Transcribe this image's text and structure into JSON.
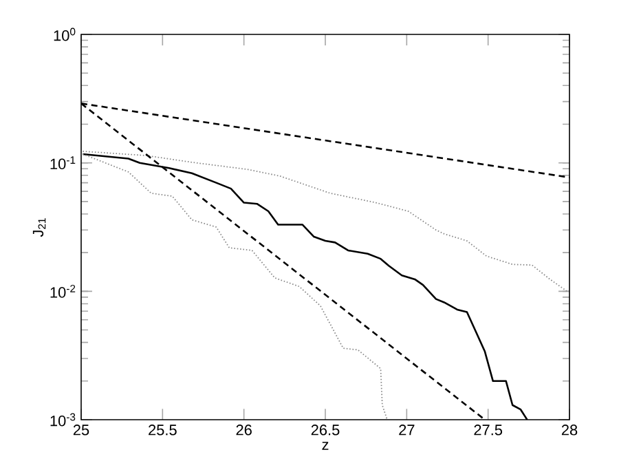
{
  "chart_data": {
    "type": "line",
    "xlabel": "z",
    "ylabel": "J$_{21}$",
    "log": "y",
    "xlim": [
      25,
      28
    ],
    "ylim": [
      0.001,
      1
    ],
    "xticks": [
      25,
      25.5,
      26,
      26.5,
      27,
      27.5,
      28
    ],
    "yticks": [
      {
        "value": 0.001,
        "label": "10$^{-3}$"
      },
      {
        "value": 0.01,
        "label": "10$^{-2}$"
      },
      {
        "value": 0.1,
        "label": "10$^{-1}$"
      },
      {
        "value": 1,
        "label": "10$^{0}$"
      }
    ],
    "marker": "none",
    "series": [
      {
        "color": "#000000",
        "line_style": "solid",
        "x": [
          25.01,
          25.29,
          25.36,
          25.54,
          25.68,
          25.83,
          25.92,
          26.0,
          26.08,
          26.15,
          26.21,
          26.36,
          26.43,
          26.5,
          26.56,
          26.64,
          26.76,
          26.84,
          26.89,
          26.97,
          27.05,
          27.1,
          27.18,
          27.23,
          27.31,
          27.37,
          27.42,
          27.48,
          27.53,
          27.61,
          27.65,
          27.7,
          27.74
        ],
        "values": [
          0.117,
          0.108,
          0.1,
          0.091,
          0.083,
          0.07,
          0.063,
          0.049,
          0.048,
          0.042,
          0.033,
          0.033,
          0.0266,
          0.0247,
          0.024,
          0.0208,
          0.0196,
          0.0179,
          0.0158,
          0.0133,
          0.0124,
          0.0112,
          0.0087,
          0.0082,
          0.0072,
          0.0069,
          0.005,
          0.0034,
          0.002,
          0.002,
          0.0013,
          0.0012,
          0.001
        ]
      },
      {
        "color": "#888888",
        "line_style": "dotted",
        "x": [
          25.01,
          25.4,
          25.68,
          26.02,
          26.22,
          26.53,
          26.81,
          27.01,
          27.18,
          27.23,
          27.37,
          27.49,
          27.65,
          27.77,
          27.88,
          27.99
        ],
        "values": [
          0.123,
          0.114,
          0.101,
          0.089,
          0.079,
          0.058,
          0.049,
          0.042,
          0.03,
          0.028,
          0.0247,
          0.0188,
          0.0162,
          0.016,
          0.0124,
          0.0099
        ]
      },
      {
        "color": "#888888",
        "line_style": "dotted",
        "x": [
          25.01,
          25.29,
          25.43,
          25.56,
          25.68,
          25.83,
          25.91,
          26.05,
          26.19,
          26.34,
          26.47,
          26.61,
          26.7,
          26.84,
          26.85,
          26.88
        ],
        "values": [
          0.117,
          0.085,
          0.058,
          0.055,
          0.036,
          0.0316,
          0.0218,
          0.0208,
          0.0127,
          0.0109,
          0.0077,
          0.0036,
          0.0035,
          0.0025,
          0.0013,
          0.001
        ]
      },
      {
        "color": "#000000",
        "line_style": "dashed",
        "x": [
          25,
          28
        ],
        "values": [
          0.29,
          0.077
        ]
      },
      {
        "color": "#000000",
        "line_style": "dashed",
        "x": [
          25,
          27.48
        ],
        "values": [
          0.29,
          0.001
        ]
      }
    ]
  }
}
